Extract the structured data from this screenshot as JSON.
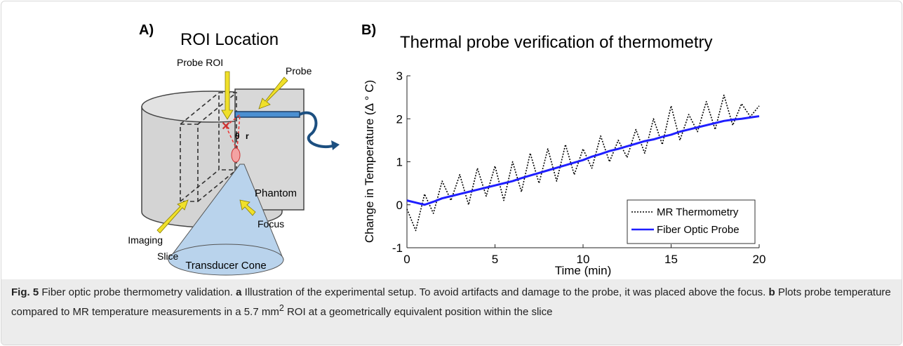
{
  "panel_a": {
    "label": "A)",
    "title": "ROI Location",
    "probe_roi": "Probe ROI",
    "probe": "Probe",
    "theta": "θ",
    "r": "r",
    "phantom": "Phantom",
    "focus": "Focus",
    "imaging_slice": [
      "Imaging",
      "Slice"
    ],
    "transducer_cone": "Transducer Cone"
  },
  "chart_data": {
    "type": "line",
    "panel_label": "B)",
    "title": "Thermal probe verification of thermometry",
    "xlabel": "Time (min)",
    "ylabel": "Change in Temperature (Δ ° C)",
    "x": [
      0,
      0.5,
      1,
      1.5,
      2,
      2.5,
      3,
      3.5,
      4,
      4.5,
      5,
      5.5,
      6,
      6.5,
      7,
      7.5,
      8,
      8.5,
      9,
      9.5,
      10,
      10.5,
      11,
      11.5,
      12,
      12.5,
      13,
      13.5,
      14,
      14.5,
      15,
      15.5,
      16,
      16.5,
      17,
      17.5,
      18,
      18.5,
      19,
      19.5,
      20
    ],
    "series": [
      {
        "name": "MR Thermometry",
        "color": "#000000",
        "dash": "dotted",
        "values": [
          -0.1,
          -0.6,
          0.25,
          -0.2,
          0.55,
          0.1,
          0.7,
          0.0,
          0.85,
          0.2,
          0.9,
          0.1,
          1.0,
          0.3,
          1.2,
          0.5,
          1.3,
          0.55,
          1.4,
          0.7,
          1.3,
          0.85,
          1.6,
          1.0,
          1.5,
          1.1,
          1.75,
          1.2,
          2.0,
          1.4,
          2.3,
          1.5,
          2.1,
          1.7,
          2.4,
          1.75,
          2.55,
          1.85,
          2.35,
          2.05,
          2.3
        ]
      },
      {
        "name": "Fiber Optic Probe",
        "color": "#1f1fff",
        "values": [
          0.1,
          0.05,
          0.0,
          0.07,
          0.15,
          0.2,
          0.25,
          0.3,
          0.35,
          0.4,
          0.45,
          0.5,
          0.55,
          0.62,
          0.68,
          0.74,
          0.8,
          0.86,
          0.92,
          0.98,
          1.04,
          1.12,
          1.18,
          1.25,
          1.3,
          1.36,
          1.42,
          1.48,
          1.52,
          1.58,
          1.63,
          1.7,
          1.75,
          1.8,
          1.85,
          1.9,
          1.95,
          1.98,
          2.0,
          2.03,
          2.06
        ]
      }
    ],
    "xlim": [
      0,
      20
    ],
    "xticks": [
      0,
      5,
      10,
      15,
      20
    ],
    "ylim": [
      -1,
      3
    ],
    "yticks": [
      -1,
      0,
      1,
      2,
      3
    ],
    "legend": "lower right"
  },
  "caption": {
    "label": "Fig. 5",
    "title": "Fiber optic probe thermometry validation.",
    "parts": [
      {
        "label": "a",
        "text": "Illustration of the experimental setup. To avoid artifacts and damage to the probe, it was placed above the focus."
      },
      {
        "label": "b",
        "text": "Plots probe temperature compared to MR temperature measurements in a 5.7 mm",
        "sup": "2",
        "after": "ROI at a geometrically equivalent position within the slice"
      }
    ]
  }
}
